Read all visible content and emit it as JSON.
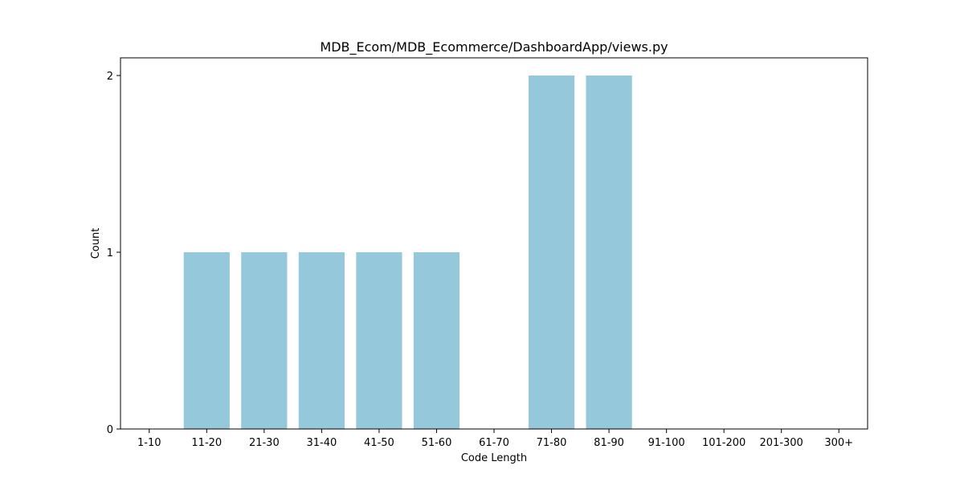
{
  "chart_data": {
    "type": "bar",
    "title": "MDB_Ecom/MDB_Ecommerce/DashboardApp/views.py",
    "xlabel": "Code Length",
    "ylabel": "Count",
    "categories": [
      "1-10",
      "11-20",
      "21-30",
      "31-40",
      "41-50",
      "51-60",
      "61-70",
      "71-80",
      "81-90",
      "91-100",
      "101-200",
      "201-300",
      "300+"
    ],
    "values": [
      0,
      1,
      1,
      1,
      1,
      1,
      0,
      2,
      2,
      0,
      0,
      0,
      0
    ],
    "yticks": [
      0,
      1,
      2
    ],
    "ylim": [
      0,
      2.1
    ],
    "grid": false,
    "bar_color": "#96c8dc"
  }
}
